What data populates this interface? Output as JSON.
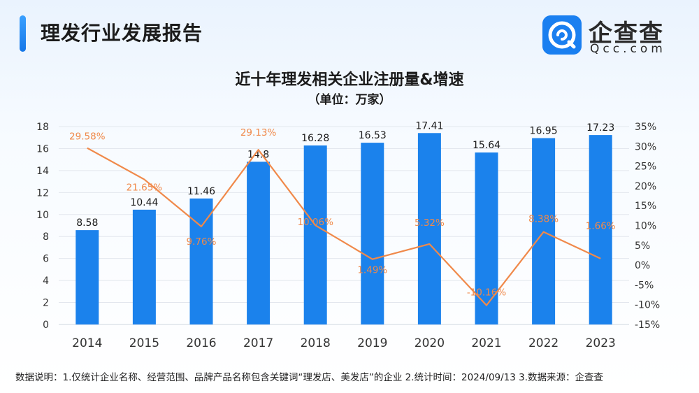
{
  "header": {
    "title": "理发行业发展报告"
  },
  "logo": {
    "name_cn": "企查查",
    "name_en": "Qcc.com"
  },
  "chart_data": {
    "type": "bar+line",
    "title": "近十年理发相关企业注册量&增速",
    "unit": "（单位：万家）",
    "categories": [
      "2014",
      "2015",
      "2016",
      "2017",
      "2018",
      "2019",
      "2020",
      "2021",
      "2022",
      "2023"
    ],
    "series": [
      {
        "type": "bar",
        "axis": "left",
        "values": [
          8.58,
          10.44,
          11.46,
          14.8,
          16.28,
          16.53,
          17.41,
          15.64,
          16.95,
          17.23
        ],
        "labels": [
          "8.58",
          "10.44",
          "11.46",
          "14.8",
          "16.28",
          "16.53",
          "17.41",
          "15.64",
          "16.95",
          "17.23"
        ]
      },
      {
        "type": "line",
        "axis": "right",
        "values": [
          29.58,
          21.65,
          9.76,
          29.13,
          10.06,
          1.49,
          5.32,
          -10.16,
          8.38,
          1.66
        ],
        "labels": [
          "29.58%",
          "21.65%",
          "9.76%",
          "29.13%",
          "10.06%",
          "1.49%",
          "5.32%",
          "-10.16%",
          "8.38%",
          "1.66%"
        ]
      }
    ],
    "y_left": {
      "min": 0,
      "max": 18,
      "ticks": [
        "0",
        "2",
        "4",
        "6",
        "8",
        "10",
        "12",
        "14",
        "16",
        "18"
      ]
    },
    "y_right": {
      "min": -15,
      "max": 35,
      "ticks": [
        "-15%",
        "-10%",
        "-5%",
        "0%",
        "5%",
        "10%",
        "15%",
        "20%",
        "25%",
        "30%",
        "35%"
      ]
    },
    "grid": true,
    "colors": {
      "bar": "#1b82ec",
      "line": "#f0894a",
      "grid": "#e3e7ee",
      "axis": "#333333"
    }
  },
  "footnote": "数据说明：1.仅统计企业名称、经营范围、品牌产品名称包含关键词“理发店、美发店”的企业   2.统计时间：2024/09/13   3.数据来源：企查查"
}
